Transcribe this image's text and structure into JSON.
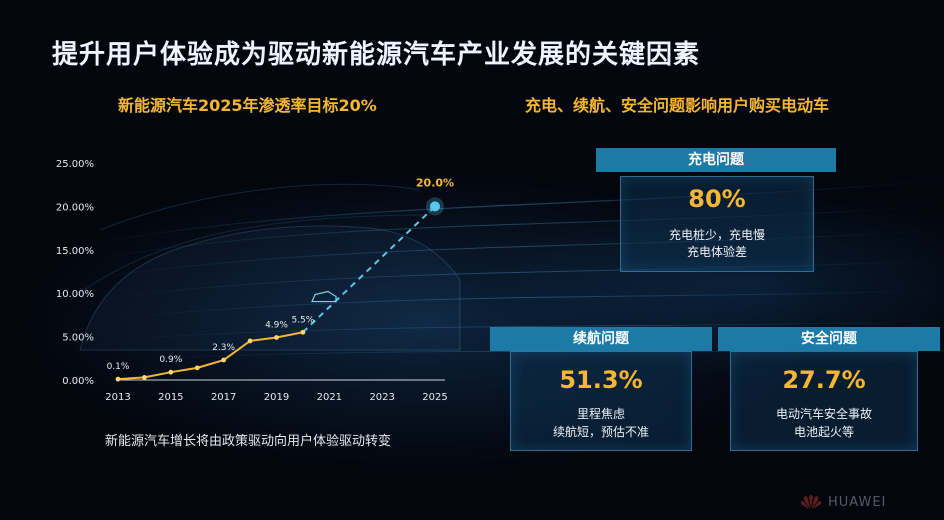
{
  "title": "提升用户体验成为驱动新能源汽车产业发展的关键因素",
  "left": {
    "subtitle": "新能源汽车2025年渗透率目标20%",
    "caption": "新能源汽车增长将由政策驱动向用户体验驱动转变"
  },
  "right": {
    "subtitle": "充电、续航、安全问题影响用户购买电动车"
  },
  "cards": {
    "charging": {
      "head": "充电问题",
      "value": "80%",
      "desc1": "充电桩少，充电慢",
      "desc2": "充电体验差"
    },
    "range": {
      "head": "续航问题",
      "value": "51.3%",
      "desc1": "里程焦虑",
      "desc2": "续航短，预估不准"
    },
    "safety": {
      "head": "安全问题",
      "value": "27.7%",
      "desc1": "电动汽车安全事故",
      "desc2": "电池起火等"
    }
  },
  "brand": {
    "name": "HUAWEI"
  },
  "colors": {
    "accent": "#f5b731",
    "card_head": "#1c7aa6",
    "projection": "#5ac8e0",
    "line": "#f5b731"
  },
  "chart_data": {
    "type": "line",
    "y_ticks": [
      "25.00%",
      "20.00%",
      "15.00%",
      "10.00%",
      "5.00%",
      "0.00%"
    ],
    "ylim": [
      0,
      25
    ],
    "x_ticks": [
      "2013",
      "2015",
      "2017",
      "2019",
      "2021",
      "2023",
      "2025"
    ],
    "xlim": [
      2013,
      2025
    ],
    "series": [
      {
        "values_x": [
          2013,
          2014,
          2015,
          2016,
          2017,
          2018,
          2019,
          2020
        ],
        "values_y": [
          0.1,
          0.3,
          0.9,
          1.4,
          2.3,
          4.5,
          4.9,
          5.5
        ]
      }
    ],
    "projection": {
      "x": [
        2020,
        2025
      ],
      "y": [
        5.5,
        20.0
      ]
    },
    "data_labels": [
      {
        "x": 2013,
        "y": 0.1,
        "text": "0.1%"
      },
      {
        "x": 2015,
        "y": 0.9,
        "text": "0.9%"
      },
      {
        "x": 2017,
        "y": 2.3,
        "text": "2.3%"
      },
      {
        "x": 2019,
        "y": 4.9,
        "text": "4.9%"
      },
      {
        "x": 2020,
        "y": 5.5,
        "text": "5.5%"
      },
      {
        "x": 2025,
        "y": 20.0,
        "text": "20.0%"
      }
    ]
  }
}
